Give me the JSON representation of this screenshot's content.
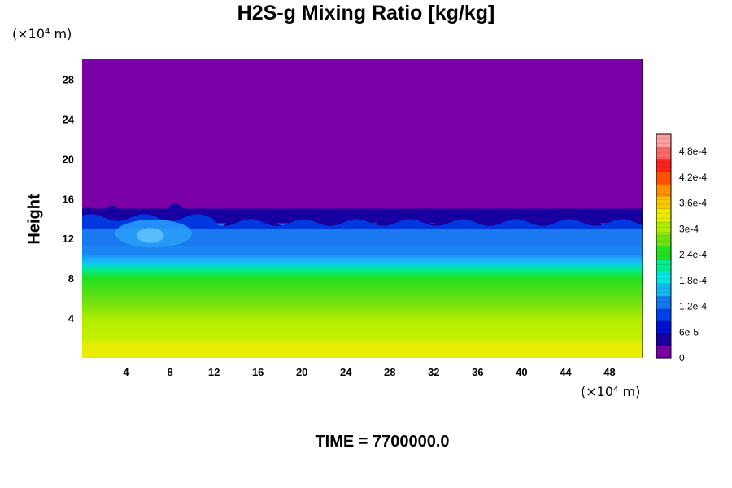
{
  "chart_data": {
    "type": "heatmap",
    "title": "H2S-g Mixing Ratio [kg/kg]",
    "ylabel": "Height",
    "xlabel": "",
    "x_unit": "(×10⁴ m)",
    "y_unit": "(×10⁴ m)",
    "x_ticks": [
      "4",
      "8",
      "12",
      "16",
      "20",
      "24",
      "28",
      "32",
      "36",
      "40",
      "44",
      "48"
    ],
    "x_tick_values": [
      4,
      8,
      12,
      16,
      20,
      24,
      28,
      32,
      36,
      40,
      44,
      48
    ],
    "y_ticks": [
      "4",
      "8",
      "12",
      "16",
      "20",
      "24",
      "28"
    ],
    "y_tick_values": [
      4,
      8,
      12,
      16,
      20,
      24,
      28
    ],
    "xlim": [
      0,
      51
    ],
    "ylim": [
      0,
      30
    ],
    "colorbar": {
      "labels": [
        "0",
        "6e-5",
        "1.2e-4",
        "1.8e-4",
        "2.4e-4",
        "3e-4",
        "3.6e-4",
        "4.2e-4",
        "4.8e-4"
      ],
      "values": [
        0,
        6e-05,
        0.00012,
        0.00018,
        0.00024,
        0.0003,
        0.00036,
        0.00042,
        0.00048
      ],
      "range": [
        0,
        0.00052
      ],
      "colors": [
        "#7b00a8",
        "#1800a0",
        "#0010d0",
        "#0040e8",
        "#1478f0",
        "#10b8f0",
        "#00e8e0",
        "#00ec90",
        "#20e020",
        "#70e010",
        "#b0ec00",
        "#e8ec00",
        "#f8c800",
        "#ff9000",
        "#ff5000",
        "#ff2020",
        "#ff6868",
        "#ffa0a0"
      ]
    },
    "layers": [
      {
        "name": "background",
        "value_range": [
          0,
          5e-06
        ],
        "y_range": [
          15,
          30
        ],
        "color": "#7b00a8"
      },
      {
        "name": "transition",
        "y_range": [
          13.5,
          15
        ],
        "color": "#1800a0"
      },
      {
        "name": "mid",
        "y_range": [
          10.3,
          13.5
        ],
        "color": "#1478f0"
      },
      {
        "name": "cyan band",
        "y_range": [
          9.5,
          10.3
        ],
        "color": "#10c8f0"
      },
      {
        "name": "green",
        "y_range": [
          6,
          9.5
        ],
        "color": "#20e020"
      },
      {
        "name": "yellow-green",
        "y_range": [
          2,
          6
        ],
        "color": "#b0ec00"
      },
      {
        "name": "yellow",
        "y_range": [
          0,
          2
        ],
        "color": "#e8ec00"
      }
    ]
  },
  "footer": {
    "time_label": "TIME = 7700000.0"
  }
}
